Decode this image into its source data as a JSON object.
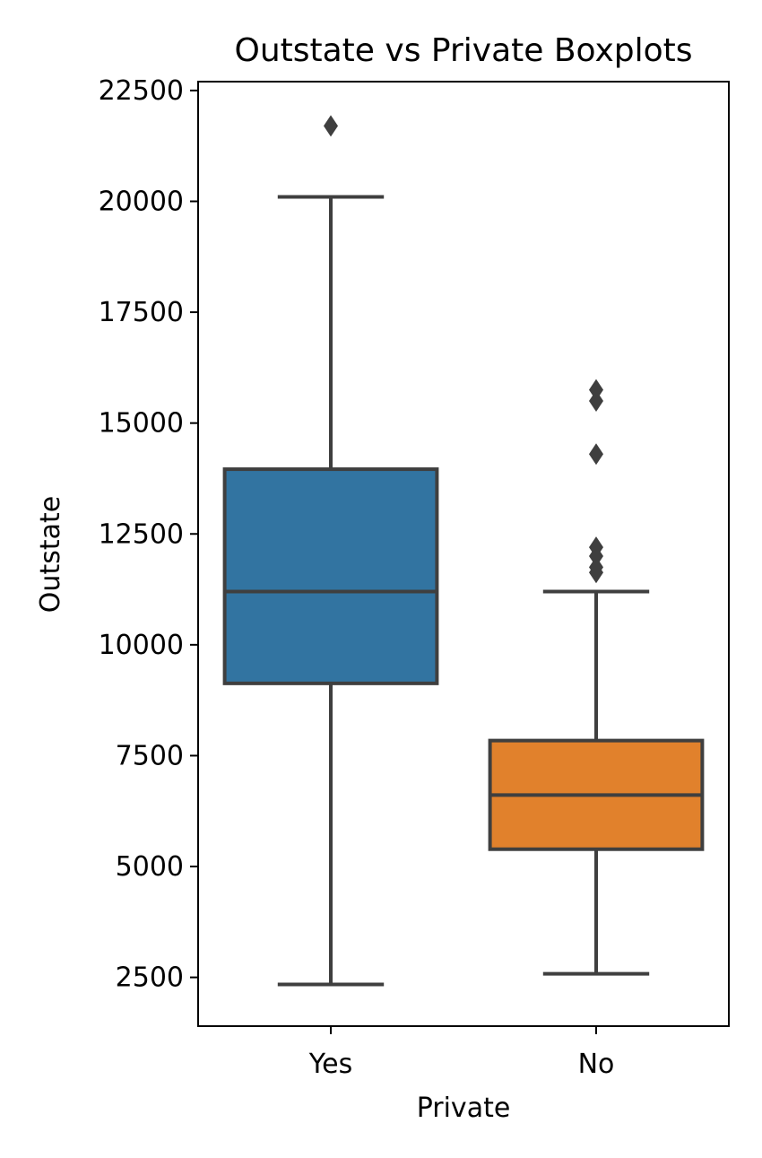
{
  "chart_data": {
    "type": "box",
    "title": "Outstate vs Private Boxplots",
    "xlabel": "Private",
    "ylabel": "Outstate",
    "ylim": [
      1400,
      22700
    ],
    "yticks": [
      2500,
      5000,
      7500,
      10000,
      12500,
      15000,
      17500,
      20000,
      22500
    ],
    "yticklabels": [
      "2500",
      "5000",
      "7500",
      "10000",
      "12500",
      "15000",
      "17500",
      "20000",
      "22500"
    ],
    "grid": false,
    "categories": [
      "Yes",
      "No"
    ],
    "boxes": [
      {
        "category": "Yes",
        "color": "#3274a1",
        "whisker_low": 2340,
        "q1": 9130,
        "median": 11200,
        "q3": 13960,
        "whisker_high": 20100,
        "outliers": [
          21700
        ]
      },
      {
        "category": "No",
        "color": "#e1812c",
        "whisker_low": 2580,
        "q1": 5390,
        "median": 6610,
        "q3": 7840,
        "whisker_high": 11200,
        "outliers": [
          11630,
          11750,
          12000,
          12200,
          14300,
          15500,
          15750
        ]
      }
    ],
    "line_color": "#3f3f3f"
  }
}
